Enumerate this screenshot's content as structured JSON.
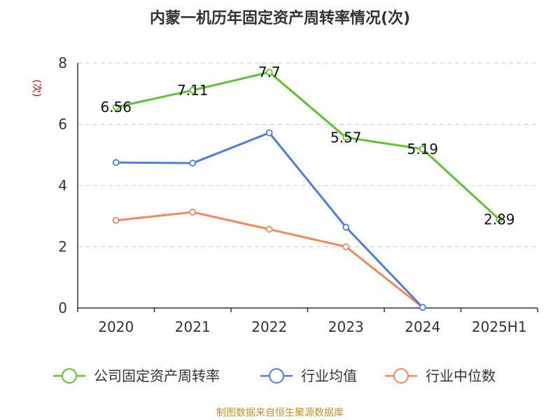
{
  "chart_data": {
    "type": "line",
    "title": "内蒙一机历年固定资产周转率情况(次)",
    "ylabel": "(次)",
    "categories": [
      "2020",
      "2021",
      "2022",
      "2023",
      "2024",
      "2025H1"
    ],
    "ylim": [
      0,
      8
    ],
    "yticks": [
      0,
      2,
      4,
      6,
      8
    ],
    "grid": true,
    "legend_position": "bottom",
    "series": [
      {
        "name": "公司固定资产周转率",
        "color": "#5cc430",
        "values": [
          6.56,
          7.11,
          7.7,
          5.57,
          5.19,
          2.89
        ],
        "show_labels": true
      },
      {
        "name": "行业均值",
        "color": "#4f7fdb",
        "values": [
          4.75,
          4.73,
          5.72,
          2.64,
          0.02,
          null
        ],
        "show_labels": false
      },
      {
        "name": "行业中位数",
        "color": "#f5885a",
        "values": [
          2.86,
          3.13,
          2.57,
          2.0,
          0.02,
          null
        ],
        "show_labels": false
      }
    ]
  },
  "footer": "制图数据来自恒生聚源数据库"
}
